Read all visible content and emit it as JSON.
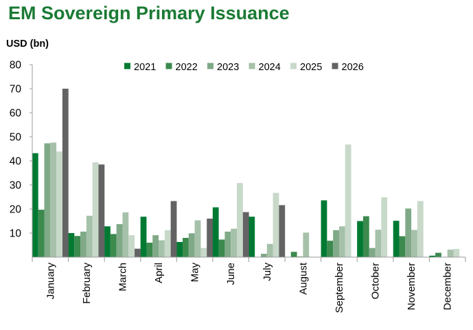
{
  "chart_data": {
    "type": "bar",
    "title": "EM Sovereign Primary Issuance",
    "ylabel": "USD (bn)",
    "xlabel": "",
    "ylim": [
      0,
      80
    ],
    "yticks": [
      10,
      20,
      30,
      40,
      50,
      60,
      70,
      80
    ],
    "grid": false,
    "legend_position": "top",
    "categories": [
      "January",
      "February",
      "March",
      "April",
      "May",
      "June",
      "July",
      "August",
      "September",
      "October",
      "November",
      "December"
    ],
    "series": [
      {
        "name": "2021",
        "color": "#007a33",
        "values": [
          43.2,
          10.0,
          12.8,
          16.8,
          6.3,
          20.7,
          16.8,
          0.1,
          23.6,
          15.0,
          15.1,
          0.6
        ]
      },
      {
        "name": "2022",
        "color": "#3c8a4e",
        "values": [
          19.7,
          8.8,
          9.6,
          6.0,
          8.0,
          7.3,
          0.0,
          2.2,
          6.8,
          17.0,
          8.7,
          1.8
        ]
      },
      {
        "name": "2023",
        "color": "#7fa987",
        "values": [
          47.3,
          10.6,
          13.7,
          9.1,
          9.9,
          10.6,
          1.4,
          0.3,
          11.2,
          3.8,
          20.2,
          0.0
        ]
      },
      {
        "name": "2024",
        "color": "#a6c1a9",
        "values": [
          47.6,
          17.2,
          18.6,
          7.0,
          15.3,
          11.8,
          5.5,
          10.2,
          12.8,
          11.4,
          11.3,
          3.1
        ]
      },
      {
        "name": "2025",
        "color": "#c8d9ca",
        "values": [
          43.9,
          39.4,
          9.1,
          11.2,
          3.8,
          30.8,
          26.7,
          0.0,
          46.8,
          24.9,
          23.3,
          3.4
        ]
      },
      {
        "name": "2026",
        "color": "#636363",
        "values": [
          70.0,
          38.5,
          3.5,
          23.3,
          16.0,
          18.7,
          21.6,
          0.0,
          0.0,
          0.0,
          0.0,
          0.0
        ]
      }
    ]
  }
}
